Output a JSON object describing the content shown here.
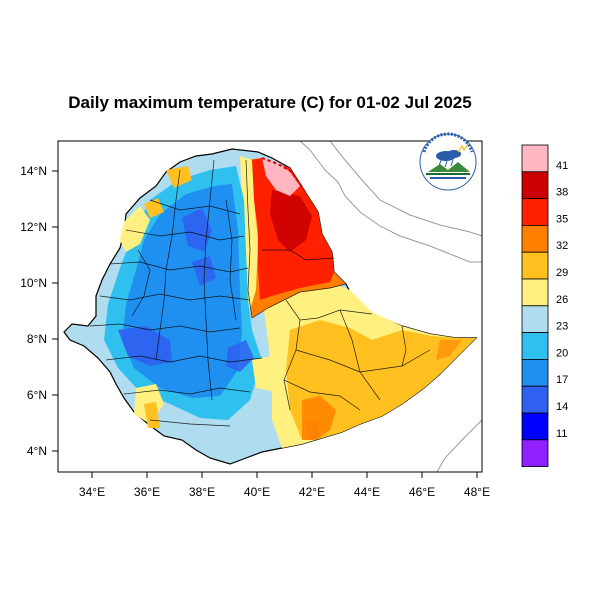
{
  "title": "Daily maximum temperature (C) for 01-02 Jul 2025",
  "axes": {
    "lat_labels": [
      "14°N",
      "12°N",
      "10°N",
      "8°N",
      "6°N",
      "4°N"
    ],
    "lon_labels": [
      "34°E",
      "36°E",
      "38°E",
      "40°E",
      "42°E",
      "44°E",
      "46°E",
      "48°E"
    ]
  },
  "colorbar": {
    "labels": [
      "41",
      "38",
      "35",
      "32",
      "29",
      "26",
      "23",
      "20",
      "17",
      "14",
      "11"
    ],
    "colors": [
      "#ffb6c1",
      "#cc0000",
      "#ff2000",
      "#ff8000",
      "#ffc020",
      "#fff080",
      "#b0dcf0",
      "#30c0f0",
      "#2090f0",
      "#3060f0",
      "#0000ff",
      "#9020ff"
    ]
  },
  "logo": {
    "name": "ethiopian-meteorology-logo",
    "text_top": "ኢትዮጵያ ሚቲዎሮሎጂ ኢንስቲትዩት",
    "text_bottom": "Ethiopian Meteorology Institute"
  },
  "palette": {
    "hot_red": "#ff2000",
    "dark_red": "#cc0000",
    "orange": "#ff8000",
    "amber": "#ffc020",
    "yellow": "#fff080",
    "light_blue": "#b0dcf0",
    "cyan": "#30c0f0",
    "blue": "#2090f0",
    "deep_blue": "#3060f0"
  }
}
